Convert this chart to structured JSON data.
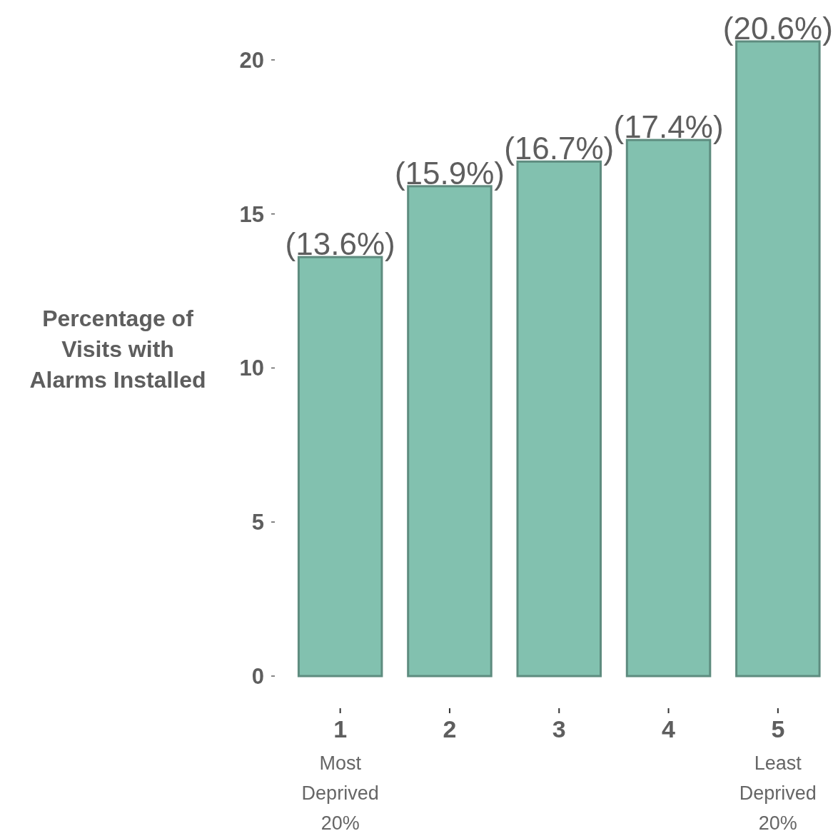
{
  "chart_data": {
    "type": "bar",
    "ylabel": "Percentage of Visits with Alarms Installed",
    "categories": [
      "1",
      "2",
      "3",
      "4",
      "5"
    ],
    "values": [
      13.6,
      15.9,
      16.7,
      17.4,
      20.6
    ],
    "value_labels": [
      "(13.6%)",
      "(15.9%)",
      "(16.7%)",
      "(17.4%)",
      "(20.6%)"
    ],
    "color": "#82c1af",
    "ylim": [
      0,
      20.6
    ],
    "yticks": [
      0,
      5,
      10,
      15,
      20
    ],
    "annotations": [
      "Most Deprived 20%",
      "Least Deprived 20%"
    ]
  }
}
